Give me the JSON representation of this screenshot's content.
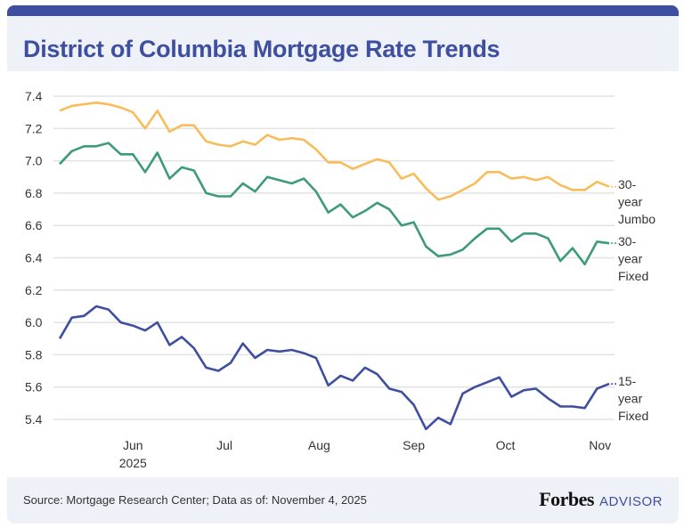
{
  "header": {
    "title": "District of Columbia Mortgage Rate Trends"
  },
  "footer": {
    "source": "Source: Mortgage Research Center; Data as of: November 4, 2025",
    "logo_text": "Forbes",
    "logo_sub": "ADVISOR"
  },
  "colors": {
    "brand": "#3e4fa0",
    "jumbo": "#f9bc5b",
    "fixed30": "#3c9a7d",
    "fixed15": "#3e4fa0",
    "header_bg": "#eef2f8"
  },
  "chart_data": {
    "type": "line",
    "title": "District of Columbia Mortgage Rate Trends",
    "xlabel": "",
    "ylabel": "",
    "ylim": [
      5.3,
      7.45
    ],
    "yticks": [
      "5.4",
      "5.6",
      "5.8",
      "6.0",
      "6.2",
      "6.4",
      "6.6",
      "6.8",
      "7.0",
      "7.2",
      "7.4"
    ],
    "xticks": [
      {
        "label": "Jun",
        "sub": "2025",
        "date": "2025-06-01"
      },
      {
        "label": "Jul",
        "date": "2025-07-01"
      },
      {
        "label": "Aug",
        "date": "2025-08-01"
      },
      {
        "label": "Sep",
        "date": "2025-09-01"
      },
      {
        "label": "Oct",
        "date": "2025-10-01"
      },
      {
        "label": "Nov",
        "date": "2025-11-01"
      }
    ],
    "xlim": [
      "2025-05-08",
      "2025-11-04"
    ],
    "grid": true,
    "legend": "inline-right",
    "x": [
      "2025-05-08",
      "2025-05-12",
      "2025-05-16",
      "2025-05-20",
      "2025-05-24",
      "2025-05-28",
      "2025-06-01",
      "2025-06-05",
      "2025-06-09",
      "2025-06-13",
      "2025-06-17",
      "2025-06-21",
      "2025-06-25",
      "2025-06-29",
      "2025-07-03",
      "2025-07-07",
      "2025-07-11",
      "2025-07-15",
      "2025-07-19",
      "2025-07-23",
      "2025-07-27",
      "2025-07-31",
      "2025-08-04",
      "2025-08-08",
      "2025-08-12",
      "2025-08-16",
      "2025-08-20",
      "2025-08-24",
      "2025-08-28",
      "2025-09-01",
      "2025-09-05",
      "2025-09-09",
      "2025-09-13",
      "2025-09-17",
      "2025-09-21",
      "2025-09-25",
      "2025-09-29",
      "2025-10-03",
      "2025-10-07",
      "2025-10-11",
      "2025-10-15",
      "2025-10-19",
      "2025-10-23",
      "2025-10-27",
      "2025-10-31",
      "2025-11-04"
    ],
    "series": [
      {
        "name": "30-year Jumbo",
        "label_lines": [
          "30-",
          "year",
          "Jumbo"
        ],
        "color": "#f9bc5b",
        "values": [
          7.31,
          7.34,
          7.35,
          7.36,
          7.35,
          7.33,
          7.3,
          7.2,
          7.31,
          7.18,
          7.22,
          7.22,
          7.12,
          7.1,
          7.09,
          7.12,
          7.1,
          7.16,
          7.13,
          7.14,
          7.13,
          7.07,
          6.99,
          6.99,
          6.95,
          6.98,
          7.01,
          6.99,
          6.89,
          6.92,
          6.83,
          6.76,
          6.78,
          6.82,
          6.86,
          6.93,
          6.93,
          6.89,
          6.9,
          6.88,
          6.9,
          6.85,
          6.82,
          6.82,
          6.87,
          6.84
        ]
      },
      {
        "name": "30-year Fixed",
        "label_lines": [
          "30-",
          "year",
          "Fixed"
        ],
        "color": "#3c9a7d",
        "values": [
          6.98,
          7.06,
          7.09,
          7.09,
          7.11,
          7.04,
          7.04,
          6.93,
          7.05,
          6.89,
          6.96,
          6.94,
          6.8,
          6.78,
          6.78,
          6.86,
          6.81,
          6.9,
          6.88,
          6.86,
          6.89,
          6.81,
          6.68,
          6.73,
          6.65,
          6.69,
          6.74,
          6.7,
          6.6,
          6.62,
          6.47,
          6.41,
          6.42,
          6.45,
          6.52,
          6.58,
          6.58,
          6.5,
          6.55,
          6.55,
          6.52,
          6.38,
          6.46,
          6.36,
          6.5,
          6.49
        ]
      },
      {
        "name": "15-year Fixed",
        "label_lines": [
          "15-",
          "year",
          "Fixed"
        ],
        "color": "#3e4fa0",
        "values": [
          5.9,
          6.03,
          6.04,
          6.1,
          6.08,
          6.0,
          5.98,
          5.95,
          6.0,
          5.86,
          5.91,
          5.84,
          5.72,
          5.7,
          5.75,
          5.87,
          5.78,
          5.83,
          5.82,
          5.83,
          5.81,
          5.78,
          5.61,
          5.67,
          5.64,
          5.72,
          5.68,
          5.59,
          5.57,
          5.49,
          5.34,
          5.41,
          5.37,
          5.56,
          5.6,
          5.63,
          5.66,
          5.54,
          5.58,
          5.59,
          5.53,
          5.48,
          5.48,
          5.47,
          5.59,
          5.62
        ]
      }
    ]
  }
}
